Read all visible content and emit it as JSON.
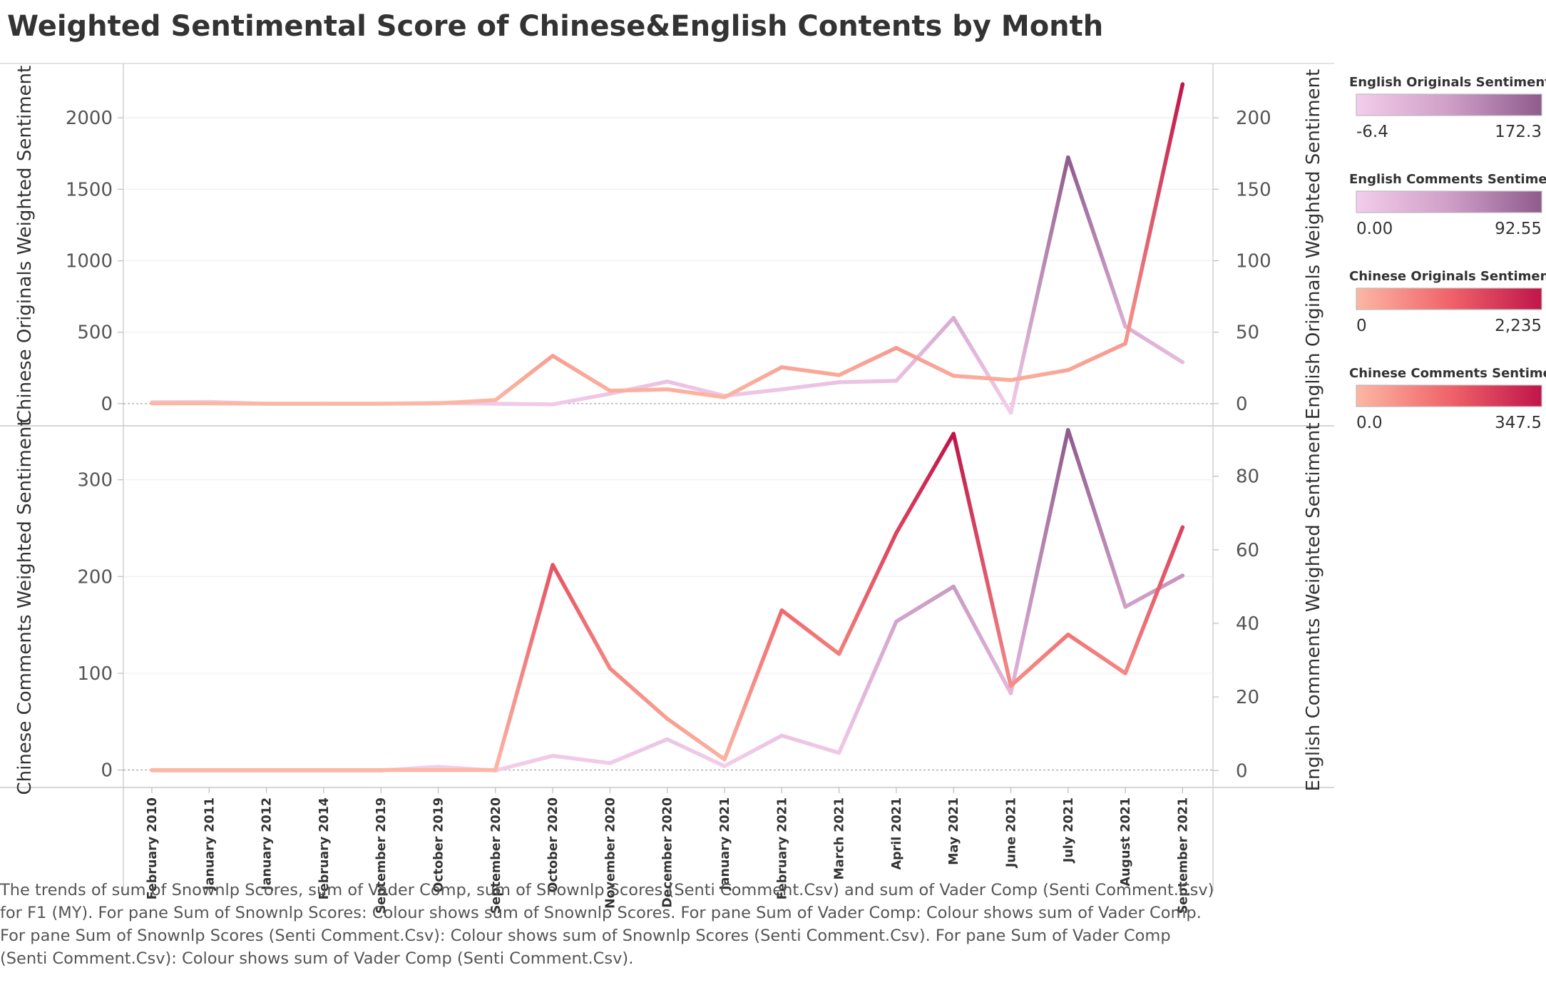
{
  "title": "Weighted Sentimental Score of Chinese&English Contents by Month",
  "caption_lines": [
    "The trends of sum of Snownlp Scores, sum of Vader Comp, sum of Snownlp Scores (Senti Comment.Csv) and sum of Vader Comp (Senti Comment.Csv)",
    "for F1 (MY).  For pane Sum of Snownlp Scores:  Colour shows sum of Snownlp Scores.  For pane Sum of Vader Comp:  Colour shows sum of Vader Comp.",
    "For pane Sum of Snownlp Scores (Senti Comment.Csv):  Colour shows sum of Snownlp Scores (Senti Comment.Csv).  For pane Sum of Vader Comp",
    "(Senti Comment.Csv):  Colour shows sum of Vader Comp (Senti Comment.Csv)."
  ],
  "legends": [
    {
      "title": "English Originals Sentiment",
      "min": "-6.4",
      "max": "172.3",
      "colors": [
        "#f3cdea",
        "#cf9fc8",
        "#8f5b8c"
      ]
    },
    {
      "title": "English Comments Sentiment",
      "min": "0.00",
      "max": "92.55",
      "colors": [
        "#f3cdea",
        "#cf9fc8",
        "#8f5b8c"
      ]
    },
    {
      "title": "Chinese Originals Sentiment",
      "min": "0",
      "max": "2,235",
      "colors": [
        "#fcb7a4",
        "#f0646a",
        "#c0154a"
      ]
    },
    {
      "title": "Chinese Comments Sentiment",
      "min": "0.0",
      "max": "347.5",
      "colors": [
        "#fcb7a4",
        "#f0646a",
        "#c0154a"
      ]
    }
  ],
  "chart_data": {
    "type": "line",
    "categories": [
      "February 2010",
      "January 2011",
      "January 2012",
      "February 2014",
      "September 2019",
      "October 2019",
      "September 2020",
      "October 2020",
      "November 2020",
      "December 2020",
      "January 2021",
      "February 2021",
      "March 2021",
      "April 2021",
      "May 2021",
      "June 2021",
      "July 2021",
      "August 2021",
      "September 2021"
    ],
    "panes": [
      {
        "left_axis": {
          "label": "Chinese Originals Weighted Sentiment",
          "ylim": [
            -150,
            2380
          ],
          "ticks": [
            0,
            500,
            1000,
            1500,
            2000
          ]
        },
        "right_axis": {
          "label": "English Originals Weighted Sentiment",
          "ylim": [
            -15,
            238
          ],
          "ticks": [
            0,
            50,
            100,
            150,
            200
          ]
        },
        "series": [
          {
            "name": "Chinese Originals Sentiment",
            "axis": "left",
            "palette": "red",
            "min": 0,
            "max": 2235,
            "values": [
              2,
              2,
              0,
              0,
              0,
              2,
              25,
              335,
              90,
              100,
              45,
              255,
              200,
              390,
              195,
              165,
              235,
              420,
              2235
            ]
          },
          {
            "name": "English Originals Sentiment",
            "axis": "right",
            "palette": "purple",
            "min": -6.4,
            "max": 172.3,
            "values": [
              1,
              1.2,
              0,
              0,
              0,
              0.5,
              0,
              -0.5,
              7,
              15.5,
              5.5,
              10,
              15,
              16,
              60,
              -6.4,
              172.3,
              54,
              29
            ]
          }
        ]
      },
      {
        "left_axis": {
          "label": "Chinese Comments Weighted Sentiment",
          "ylim": [
            -18,
            355
          ],
          "ticks": [
            0,
            100,
            200,
            300
          ]
        },
        "right_axis": {
          "label": "English Comments Weighted Sentiment",
          "ylim": [
            -4.6,
            93.5
          ],
          "ticks": [
            0,
            20,
            40,
            60,
            80
          ]
        },
        "series": [
          {
            "name": "Chinese Comments Sentiment",
            "axis": "left",
            "palette": "red",
            "min": 0,
            "max": 347.5,
            "values": [
              0,
              0,
              0,
              0,
              0,
              0,
              0,
              212,
              105,
              53,
              11,
              165,
              120,
              245,
              347.5,
              87,
              140,
              100,
              251
            ]
          },
          {
            "name": "English Comments Sentiment",
            "axis": "right",
            "palette": "purple",
            "min": 0,
            "max": 92.55,
            "values": [
              0,
              0,
              0,
              0,
              0,
              1,
              0,
              4,
              2,
              8.5,
              1.2,
              9.5,
              4.8,
              40.5,
              50,
              21,
              92.55,
              44.5,
              53
            ]
          }
        ]
      }
    ]
  }
}
